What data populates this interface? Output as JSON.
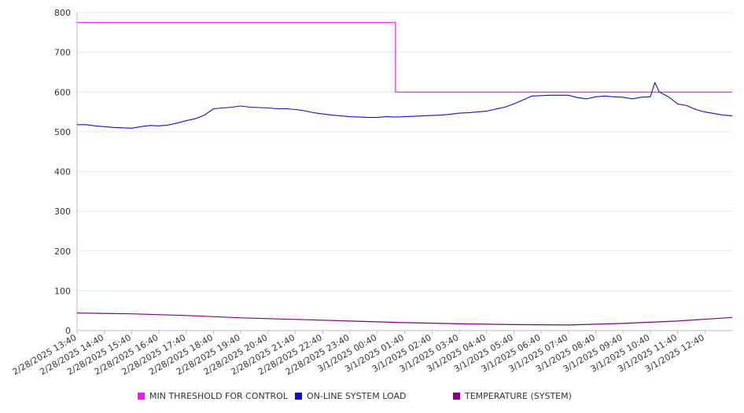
{
  "chart_data": {
    "type": "line",
    "title": "",
    "xlabel": "",
    "ylabel": "",
    "ylim": [
      0,
      800
    ],
    "yticks": [
      0,
      100,
      200,
      300,
      400,
      500,
      600,
      700,
      800
    ],
    "grid": "horizontal",
    "legend_position": "bottom",
    "x_tick_labels": [
      "2/28/2025 13:40",
      "2/28/2025 14:40",
      "2/28/2025 15:40",
      "2/28/2025 16:40",
      "2/28/2025 17:40",
      "2/28/2025 18:40",
      "2/28/2025 19:40",
      "2/28/2025 20:40",
      "2/28/2025 21:40",
      "2/28/2025 22:40",
      "2/28/2025 23:40",
      "3/1/2025 00:40",
      "3/1/2025 01:40",
      "3/1/2025 02:40",
      "3/1/2025 03:40",
      "3/1/2025 04:40",
      "3/1/2025 05:40",
      "3/1/2025 06:40",
      "3/1/2025 07:40",
      "3/1/2025 08:40",
      "3/1/2025 09:40",
      "3/1/2025 10:40",
      "3/1/2025 11:40",
      "3/1/2025 12:40"
    ],
    "x_start_time": "2/28/2025 13:40",
    "x_end_time": "3/1/2025 13:40",
    "series": [
      {
        "name": "MIN THRESHOLD FOR CONTROL",
        "color": "#e81ce8",
        "step": true,
        "x": [
          "2/28/2025 13:40",
          "3/1/2025 01:20",
          "3/1/2025 01:20",
          "3/1/2025 13:40"
        ],
        "values": [
          775,
          775,
          600,
          600
        ]
      },
      {
        "name": "ON-LINE SYSTEM LOAD",
        "color": "#1010c8",
        "x": [
          "2/28/2025 13:40",
          "2/28/2025 14:00",
          "2/28/2025 14:20",
          "2/28/2025 14:40",
          "2/28/2025 15:00",
          "2/28/2025 15:20",
          "2/28/2025 15:40",
          "2/28/2025 16:00",
          "2/28/2025 16:20",
          "2/28/2025 16:40",
          "2/28/2025 17:00",
          "2/28/2025 17:20",
          "2/28/2025 17:40",
          "2/28/2025 18:00",
          "2/28/2025 18:20",
          "2/28/2025 18:40",
          "2/28/2025 19:00",
          "2/28/2025 19:20",
          "2/28/2025 19:40",
          "2/28/2025 20:00",
          "2/28/2025 20:20",
          "2/28/2025 20:40",
          "2/28/2025 21:00",
          "2/28/2025 21:20",
          "2/28/2025 21:40",
          "2/28/2025 22:00",
          "2/28/2025 22:20",
          "2/28/2025 22:40",
          "2/28/2025 23:00",
          "2/28/2025 23:20",
          "2/28/2025 23:40",
          "3/1/2025 00:00",
          "3/1/2025 00:20",
          "3/1/2025 00:40",
          "3/1/2025 01:00",
          "3/1/2025 01:20",
          "3/1/2025 01:40",
          "3/1/2025 02:00",
          "3/1/2025 02:20",
          "3/1/2025 02:40",
          "3/1/2025 03:00",
          "3/1/2025 03:20",
          "3/1/2025 03:40",
          "3/1/2025 04:00",
          "3/1/2025 04:20",
          "3/1/2025 04:40",
          "3/1/2025 05:00",
          "3/1/2025 05:20",
          "3/1/2025 05:40",
          "3/1/2025 06:00",
          "3/1/2025 06:20",
          "3/1/2025 06:40",
          "3/1/2025 07:00",
          "3/1/2025 07:20",
          "3/1/2025 07:40",
          "3/1/2025 08:00",
          "3/1/2025 08:20",
          "3/1/2025 08:40",
          "3/1/2025 09:00",
          "3/1/2025 09:20",
          "3/1/2025 09:40",
          "3/1/2025 10:00",
          "3/1/2025 10:20",
          "3/1/2025 10:40",
          "3/1/2025 10:50",
          "3/1/2025 11:00",
          "3/1/2025 11:20",
          "3/1/2025 11:40",
          "3/1/2025 12:00",
          "3/1/2025 12:20",
          "3/1/2025 12:40",
          "3/1/2025 13:00",
          "3/1/2025 13:20",
          "3/1/2025 13:40"
        ],
        "values": [
          518,
          518,
          515,
          513,
          511,
          510,
          509,
          513,
          516,
          515,
          517,
          522,
          528,
          533,
          542,
          558,
          560,
          562,
          565,
          562,
          561,
          560,
          558,
          558,
          556,
          553,
          548,
          545,
          542,
          540,
          538,
          537,
          536,
          536,
          538,
          537,
          538,
          539,
          540,
          541,
          542,
          544,
          547,
          548,
          550,
          552,
          557,
          562,
          570,
          580,
          590,
          591,
          592,
          592,
          592,
          586,
          583,
          588,
          590,
          588,
          587,
          583,
          587,
          588,
          624,
          600,
          588,
          570,
          566,
          556,
          550,
          546,
          542,
          540
        ]
      },
      {
        "name": "TEMPERATURE (SYSTEM)",
        "color": "#800080",
        "x": [
          "2/28/2025 13:40",
          "2/28/2025 15:40",
          "2/28/2025 17:40",
          "2/28/2025 19:40",
          "2/28/2025 21:40",
          "2/28/2025 23:40",
          "3/1/2025 01:40",
          "3/1/2025 03:40",
          "3/1/2025 05:40",
          "3/1/2025 07:40",
          "3/1/2025 09:40",
          "3/1/2025 11:40",
          "3/1/2025 13:40"
        ],
        "values": [
          44,
          42,
          38,
          32,
          28,
          24,
          20,
          17,
          15,
          14,
          18,
          24,
          33
        ]
      }
    ]
  }
}
